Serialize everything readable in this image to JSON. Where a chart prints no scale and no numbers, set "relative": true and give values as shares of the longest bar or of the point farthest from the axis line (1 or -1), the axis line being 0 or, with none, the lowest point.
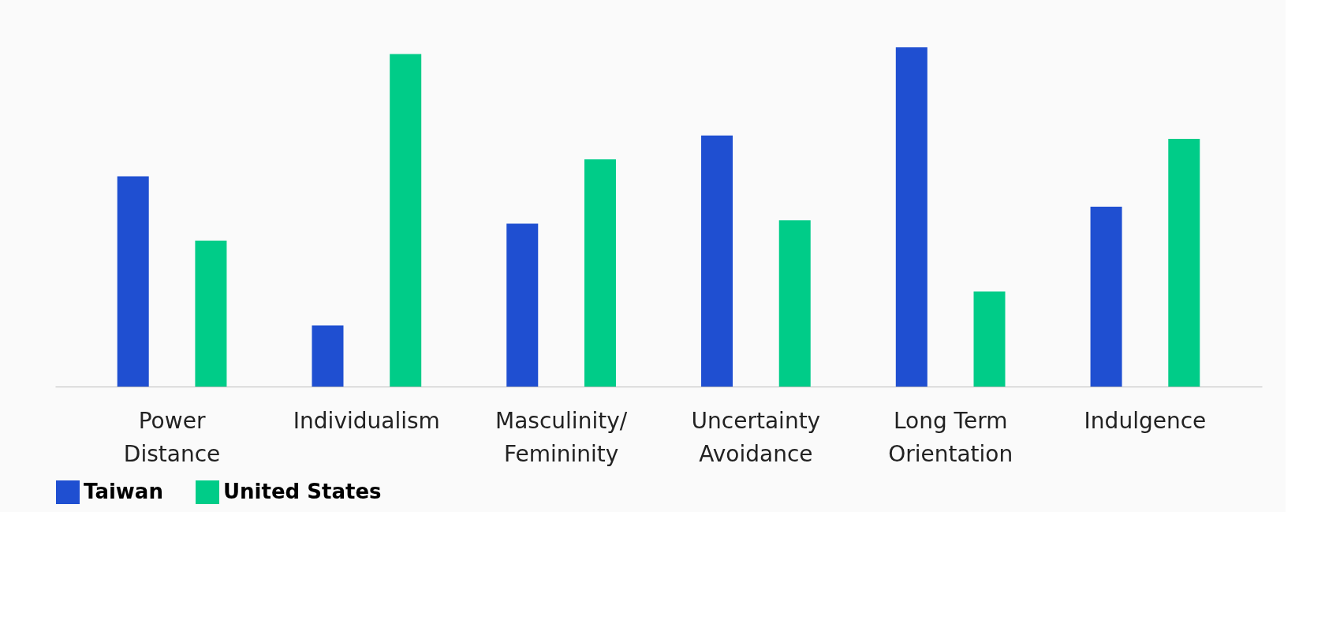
{
  "chart_data": {
    "type": "bar",
    "relative": true,
    "legend": "bottom",
    "grid": false,
    "categories": [
      "Power\nDistance",
      "Individualism",
      "Masculinity/\nFemininity",
      "Uncertainty\nAvoidance",
      "Long Term\nOrientation",
      "Indulgence"
    ],
    "series": [
      {
        "name": "Taiwan",
        "color": "#1f4fd1",
        "values": [
          0.62,
          0.18,
          0.48,
          0.74,
          1,
          0.53
        ]
      },
      {
        "name": "United States",
        "color": "#00cc88",
        "values": [
          0.43,
          0.98,
          0.67,
          0.49,
          0.28,
          0.73
        ]
      }
    ]
  }
}
